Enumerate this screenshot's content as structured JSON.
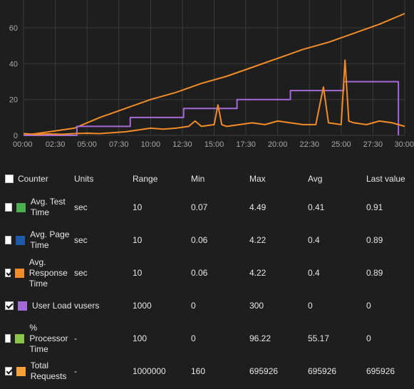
{
  "chart_data": {
    "type": "line",
    "x_ticks": [
      "00:00",
      "02:30",
      "05:00",
      "07:30",
      "10:00",
      "12:30",
      "15:00",
      "17:30",
      "20:00",
      "22:30",
      "25:00",
      "27:30",
      "30:00"
    ],
    "y_ticks": [
      "0",
      "20",
      "40",
      "60"
    ],
    "xlim_minutes": [
      0,
      30
    ],
    "ylim": [
      0,
      70
    ],
    "grid": true,
    "series": [
      {
        "color": "#f28c28",
        "x_minutes": [
          0,
          2,
          4,
          6,
          8,
          10,
          12,
          14,
          16,
          18,
          20,
          22,
          24,
          26,
          28,
          30
        ],
        "values": [
          0,
          2,
          4,
          10,
          15,
          20,
          24,
          29,
          33,
          38,
          43,
          48,
          52,
          57,
          62,
          68
        ]
      },
      {
        "color": "#a36bd8",
        "x_minutes": [
          0,
          4.2,
          4.2,
          8.4,
          8.4,
          12.6,
          12.6,
          16.8,
          16.8,
          21,
          21,
          25.2,
          25.2,
          29.5,
          29.5
        ],
        "values": [
          0,
          0,
          5,
          5,
          10,
          10,
          15,
          15,
          20,
          20,
          25,
          25,
          30,
          30,
          0
        ]
      },
      {
        "color": "#f28c28",
        "x_minutes": [
          0,
          1,
          2,
          3,
          4,
          5,
          6,
          7,
          8,
          9,
          10,
          11,
          12,
          13,
          13.5,
          14,
          15,
          15.3,
          15.6,
          16,
          17,
          18,
          19,
          20,
          21,
          22,
          23,
          23.6,
          24,
          25,
          25.3,
          25.6,
          26,
          27,
          28,
          29,
          30
        ],
        "values": [
          1,
          0.5,
          0.8,
          0.6,
          1,
          1.2,
          1,
          1.5,
          2,
          3,
          4,
          3.5,
          4,
          5,
          8,
          5,
          6,
          17,
          6,
          5,
          6,
          7,
          6,
          8,
          7,
          6,
          6,
          27,
          7,
          6,
          42,
          8,
          7,
          6,
          8,
          7,
          5
        ]
      }
    ]
  },
  "table": {
    "headers": {
      "counter": "Counter",
      "units": "Units",
      "range": "Range",
      "min": "Min",
      "max": "Max",
      "avg": "Avg",
      "last": "Last value"
    },
    "rows": [
      {
        "checked": false,
        "color": "#4caf50",
        "name": "Avg. Test Time",
        "units": "sec",
        "range": "10",
        "min": "0.07",
        "max": "4.49",
        "avg": "0.41",
        "last": "0.91"
      },
      {
        "checked": false,
        "color": "#1e5aa8",
        "name": "Avg. Page Time",
        "units": "sec",
        "range": "10",
        "min": "0.06",
        "max": "4.22",
        "avg": "0.4",
        "last": "0.89"
      },
      {
        "checked": true,
        "color": "#f28c28",
        "name": "Avg. Response Time",
        "units": "sec",
        "range": "10",
        "min": "0.06",
        "max": "4.22",
        "avg": "0.4",
        "last": "0.89"
      },
      {
        "checked": true,
        "color": "#a36bd8",
        "name": "User Load",
        "units": "vusers",
        "range": "1000",
        "min": "0",
        "max": "300",
        "avg": "0",
        "last": "0"
      },
      {
        "checked": false,
        "color": "#8bc34a",
        "name": "% Processor Time",
        "units": "-",
        "range": "100",
        "min": "0",
        "max": "96.22",
        "avg": "55.17",
        "last": "0"
      },
      {
        "checked": true,
        "color": "#f5a03b",
        "name": "Total Requests",
        "units": "-",
        "range": "1000000",
        "min": "160",
        "max": "695926",
        "avg": "695926",
        "last": "695926"
      }
    ]
  }
}
